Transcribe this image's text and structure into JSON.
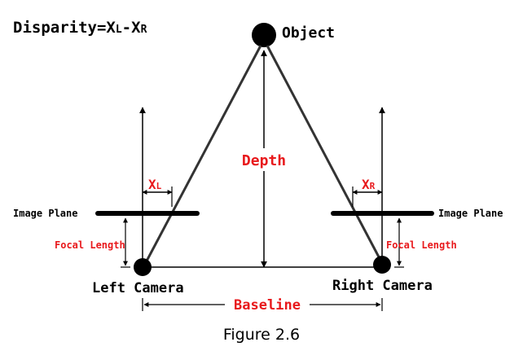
{
  "title": {
    "prefix": "Disparity=X",
    "sub_left": "L",
    "mid": "-X",
    "sub_right": "R"
  },
  "labels": {
    "object": "Object",
    "depth": "Depth",
    "image_plane_left": "Image Plane",
    "image_plane_right": "Image Plane",
    "focal_length_left": "Focal Length",
    "focal_length_right": "Focal Length",
    "left_camera": "Left Camera",
    "right_camera": "Right Camera",
    "baseline": "Baseline",
    "xl_main": "X",
    "xl_sub": "L",
    "xr_main": "X",
    "xr_sub": "R"
  },
  "caption": "Figure 2.6",
  "colors": {
    "ink": "#000000",
    "accent": "#e8191c",
    "caption": "#000000"
  }
}
